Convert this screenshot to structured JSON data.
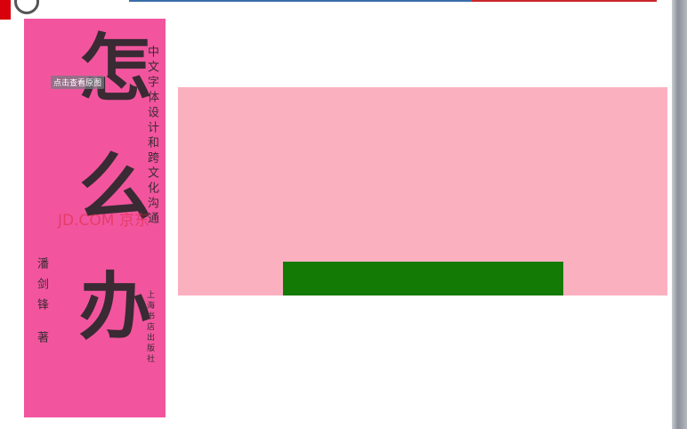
{
  "book_cover": {
    "title": "怎么办",
    "subtitle": "中文字体设计和跨文化沟通",
    "author": "潘剑锋 著",
    "publisher": "上海书店出版社",
    "watermark": "JD.COM 京东",
    "view_button": "点击查看原图"
  }
}
